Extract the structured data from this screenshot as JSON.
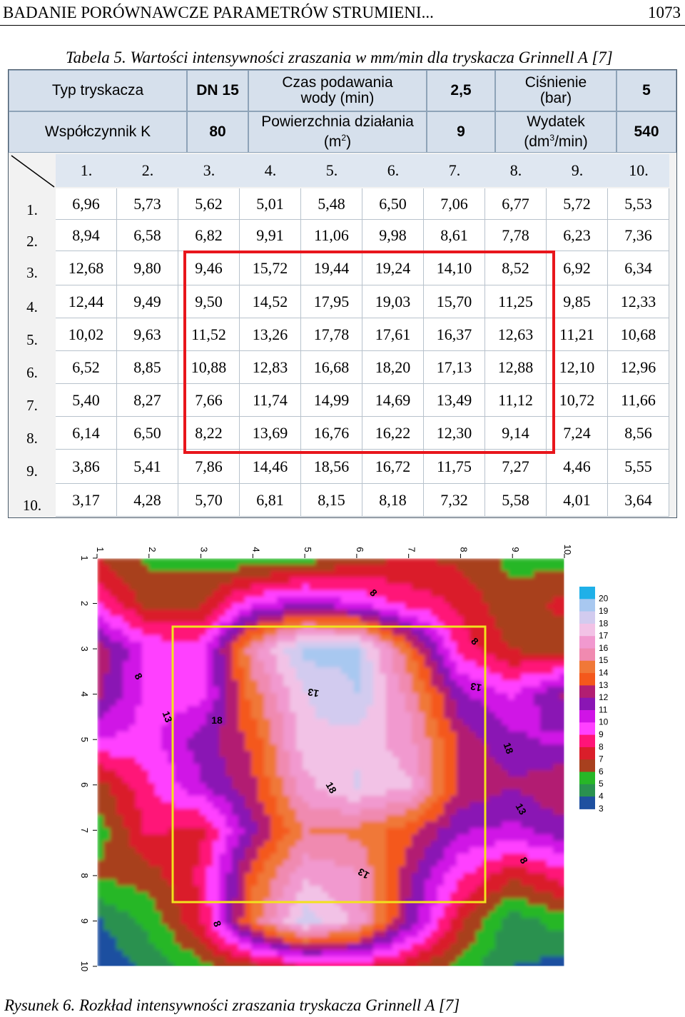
{
  "header": {
    "title": "BADANIE PORÓWNAWCZE PARAMETRÓW STRUMIENI...",
    "page": "1073"
  },
  "table_caption": "Tabela 5. Wartości intensywności zraszania w mm/min dla tryskacza Grinnell A [7]",
  "params": {
    "typ_label": "Typ tryskacza",
    "typ_value": "DN 15",
    "czas_label": "Czas podawania wody (min)",
    "czas_value": "2,5",
    "cisn_label": "Ciśnienie (bar)",
    "cisn_value": "5",
    "k_label": "Współczynnik K",
    "k_value": "80",
    "pow_label_a": "Powierzchnia działania",
    "pow_label_b": "(m",
    "pow_sup": "2",
    "pow_label_c": ")",
    "pow_value": "9",
    "wyd_label_a": "Wydatek",
    "wyd_label_b": "(dm",
    "wyd_sup": "3",
    "wyd_label_c": "/min)",
    "wyd_value": "540"
  },
  "columns": [
    "1.",
    "2.",
    "3.",
    "4.",
    "5.",
    "6.",
    "7.",
    "8.",
    "9.",
    "10."
  ],
  "row_labels": [
    "1.",
    "2.",
    "3.",
    "4.",
    "5.",
    "6.",
    "7.",
    "8.",
    "9.",
    "10."
  ],
  "rows": [
    [
      "6,96",
      "5,73",
      "5,62",
      "5,01",
      "5,48",
      "6,50",
      "7,06",
      "6,77",
      "5,72",
      "5,53"
    ],
    [
      "8,94",
      "6,58",
      "6,82",
      "9,91",
      "11,06",
      "9,98",
      "8,61",
      "7,78",
      "6,23",
      "7,36"
    ],
    [
      "12,68",
      "9,80",
      "9,46",
      "15,72",
      "19,44",
      "19,24",
      "14,10",
      "8,52",
      "6,92",
      "6,34"
    ],
    [
      "12,44",
      "9,49",
      "9,50",
      "14,52",
      "17,95",
      "19,03",
      "15,70",
      "11,25",
      "9,85",
      "12,33"
    ],
    [
      "10,02",
      "9,63",
      "11,52",
      "13,26",
      "17,78",
      "17,61",
      "16,37",
      "12,63",
      "11,21",
      "10,68"
    ],
    [
      "6,52",
      "8,85",
      "10,88",
      "12,83",
      "16,68",
      "18,20",
      "17,13",
      "12,88",
      "12,10",
      "12,96"
    ],
    [
      "5,40",
      "8,27",
      "7,66",
      "11,74",
      "14,99",
      "14,69",
      "13,49",
      "11,12",
      "10,72",
      "11,66"
    ],
    [
      "6,14",
      "6,50",
      "8,22",
      "13,69",
      "16,76",
      "16,22",
      "12,30",
      "9,14",
      "7,24",
      "8,56"
    ],
    [
      "3,86",
      "5,41",
      "7,86",
      "14,46",
      "18,56",
      "16,72",
      "11,75",
      "7,27",
      "4,46",
      "5,55"
    ],
    [
      "3,17",
      "4,28",
      "5,70",
      "6,81",
      "8,15",
      "8,18",
      "7,32",
      "5,58",
      "4,01",
      "3,64"
    ]
  ],
  "chart_data": {
    "type": "heatmap",
    "x_ticks": [
      "1",
      "2",
      "3",
      "4",
      "5",
      "6",
      "7",
      "8",
      "9",
      "10"
    ],
    "y_ticks": [
      "1",
      "2",
      "3",
      "4",
      "5",
      "6",
      "7",
      "8",
      "9",
      "10"
    ],
    "legend_levels": [
      "20",
      "19",
      "18",
      "17",
      "16",
      "15",
      "14",
      "13",
      "12",
      "11",
      "10",
      "9",
      "8",
      "7",
      "6",
      "5",
      "4",
      "3"
    ],
    "legend_colors": [
      "#1fb0e8",
      "#a8c8f0",
      "#d2cbef",
      "#f2c2e6",
      "#f199cf",
      "#f08ab0",
      "#f07838",
      "#f4581c",
      "#b21e72",
      "#8a16b4",
      "#d014e6",
      "#ff40ff",
      "#ff1478",
      "#da1e2a",
      "#a8401e",
      "#27b727",
      "#2a9150",
      "#1e50a0"
    ],
    "contour_labels": [
      "8",
      "8",
      "8",
      "13",
      "13",
      "13",
      "18",
      "18",
      "18",
      "13",
      "8",
      "8",
      "13"
    ],
    "x_range": [
      1,
      10
    ],
    "y_range": [
      1,
      10
    ],
    "legend_position": "right",
    "values_source": "table rows"
  },
  "figure_caption": "Rysunek 6. Rozkład intensywności zraszania tryskacza Grinnell A [7]"
}
